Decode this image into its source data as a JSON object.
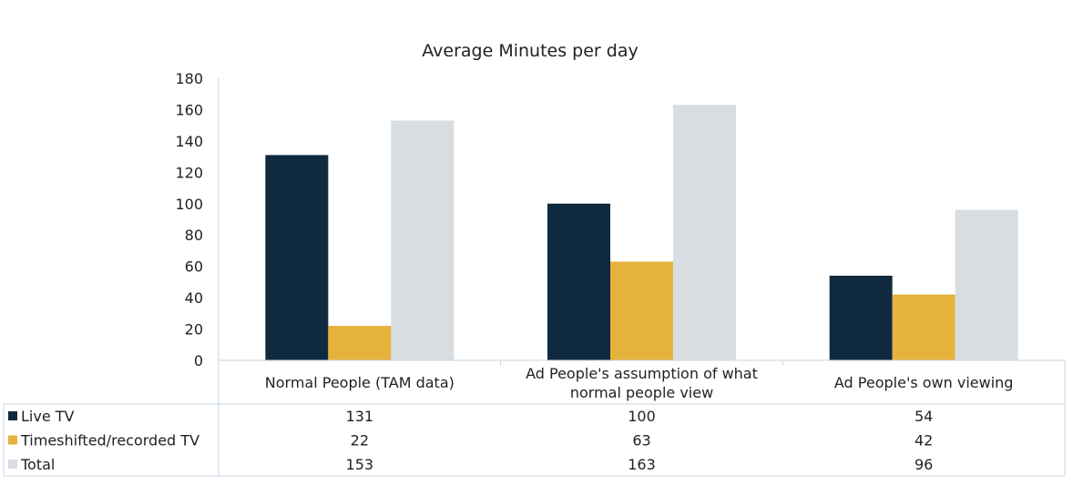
{
  "chart_data": {
    "type": "bar",
    "title": "Average Minutes per day",
    "categories": [
      [
        "Normal People (TAM data)"
      ],
      [
        "Ad People's assumption of what",
        "normal people view"
      ],
      [
        "Ad People's own viewing"
      ]
    ],
    "series": [
      {
        "name": "Live TV",
        "color": "#0f2a3f",
        "values": [
          131,
          100,
          54
        ]
      },
      {
        "name": "Timeshifted/recorded TV",
        "color": "#e5b23c",
        "values": [
          22,
          63,
          42
        ]
      },
      {
        "name": "Total",
        "color": "#d8dde2",
        "values": [
          153,
          163,
          96
        ]
      }
    ],
    "ylim": [
      0,
      180
    ],
    "yticks": [
      0,
      20,
      40,
      60,
      80,
      100,
      120,
      140,
      160,
      180
    ],
    "grid": false,
    "legend": "data-table"
  }
}
